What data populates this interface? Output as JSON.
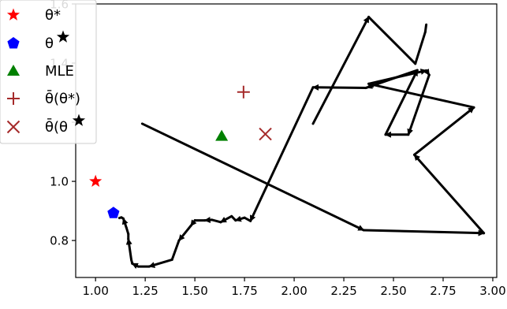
{
  "chart_data": {
    "type": "scatter",
    "xlim": [
      0.9,
      3.02
    ],
    "ylim": [
      0.675,
      1.6
    ],
    "x_ticks": [
      1.0,
      1.25,
      1.5,
      1.75,
      2.0,
      2.25,
      2.5,
      2.75,
      3.0
    ],
    "x_tick_labels": [
      "1.00",
      "1.25",
      "1.50",
      "1.75",
      "2.00",
      "2.25",
      "2.50",
      "2.75",
      "3.00"
    ],
    "y_ticks": [
      0.8,
      1.0,
      1.2,
      1.4,
      1.6
    ],
    "y_tick_labels": [
      "0.8",
      "1.0",
      "",
      "1.4",
      "1.6"
    ],
    "grid": false,
    "legend": {
      "placement": "upper-left",
      "entries": [
        {
          "label": "θ*",
          "marker": "star",
          "color": "#ff0000"
        },
        {
          "label": "θ",
          "marker": "pentagon",
          "color": "#0000ff"
        },
        {
          "label": "MLE",
          "marker": "triangle",
          "color": "#008000"
        },
        {
          "label": "θ̄(θ*)",
          "marker": "plus",
          "color": "#a52a2a"
        },
        {
          "label": "θ̄(θ",
          "marker": "x",
          "color": "#a52a2a"
        }
      ]
    },
    "points": [
      {
        "name": "θ*",
        "x": 1.0,
        "y": 1.0,
        "marker": "star",
        "color": "#ff0000"
      },
      {
        "name": "θ",
        "x": 1.09,
        "y": 0.893,
        "marker": "pentagon",
        "color": "#0000ff"
      },
      {
        "name": "MLE",
        "x": 1.635,
        "y": 1.153,
        "marker": "triangle",
        "color": "#008000"
      },
      {
        "name": "θ̄(θ*)",
        "x": 1.745,
        "y": 1.302,
        "marker": "plus",
        "color": "#a52a2a"
      },
      {
        "name": "θ̄(θ",
        "x": 1.855,
        "y": 1.16,
        "marker": "x",
        "color": "#a52a2a"
      }
    ],
    "trajectory": {
      "color": "#000000",
      "x": [
        1.235,
        2.35,
        2.955,
        2.605,
        2.905,
        2.375,
        2.665,
        2.68,
        2.575,
        2.46,
        2.62,
        2.365,
        2.36,
        2.095,
        1.78,
        1.75,
        1.705,
        1.685,
        1.63,
        1.585,
        1.55,
        1.5,
        1.48,
        1.42,
        1.385,
        1.27,
        1.215,
        1.185,
        1.18,
        1.165,
        1.165,
        1.155,
        1.14,
        1.13,
        1.12
      ],
      "y": [
        1.195,
        0.835,
        0.825,
        1.09,
        1.25,
        1.33,
        1.375,
        1.36,
        1.158,
        1.158,
        1.376,
        1.317,
        1.316,
        1.318,
        0.866,
        0.877,
        0.868,
        0.882,
        0.862,
        0.87,
        0.868,
        0.868,
        0.85,
        0.8,
        0.735,
        0.712,
        0.712,
        0.722,
        0.735,
        0.805,
        0.822,
        0.844,
        0.874,
        0.878,
        0.876
      ],
      "arrow_indices": [
        1,
        2,
        3,
        4,
        5,
        6,
        7,
        8,
        9,
        10,
        11,
        13,
        14,
        16,
        18,
        20,
        22,
        23,
        25,
        27,
        29,
        32
      ]
    },
    "extra_path": {
      "color": "#000000",
      "x": [
        2.095,
        2.375,
        2.61,
        2.66,
        2.665
      ],
      "y": [
        1.195,
        1.556,
        1.398,
        1.505,
        1.53
      ]
    }
  }
}
